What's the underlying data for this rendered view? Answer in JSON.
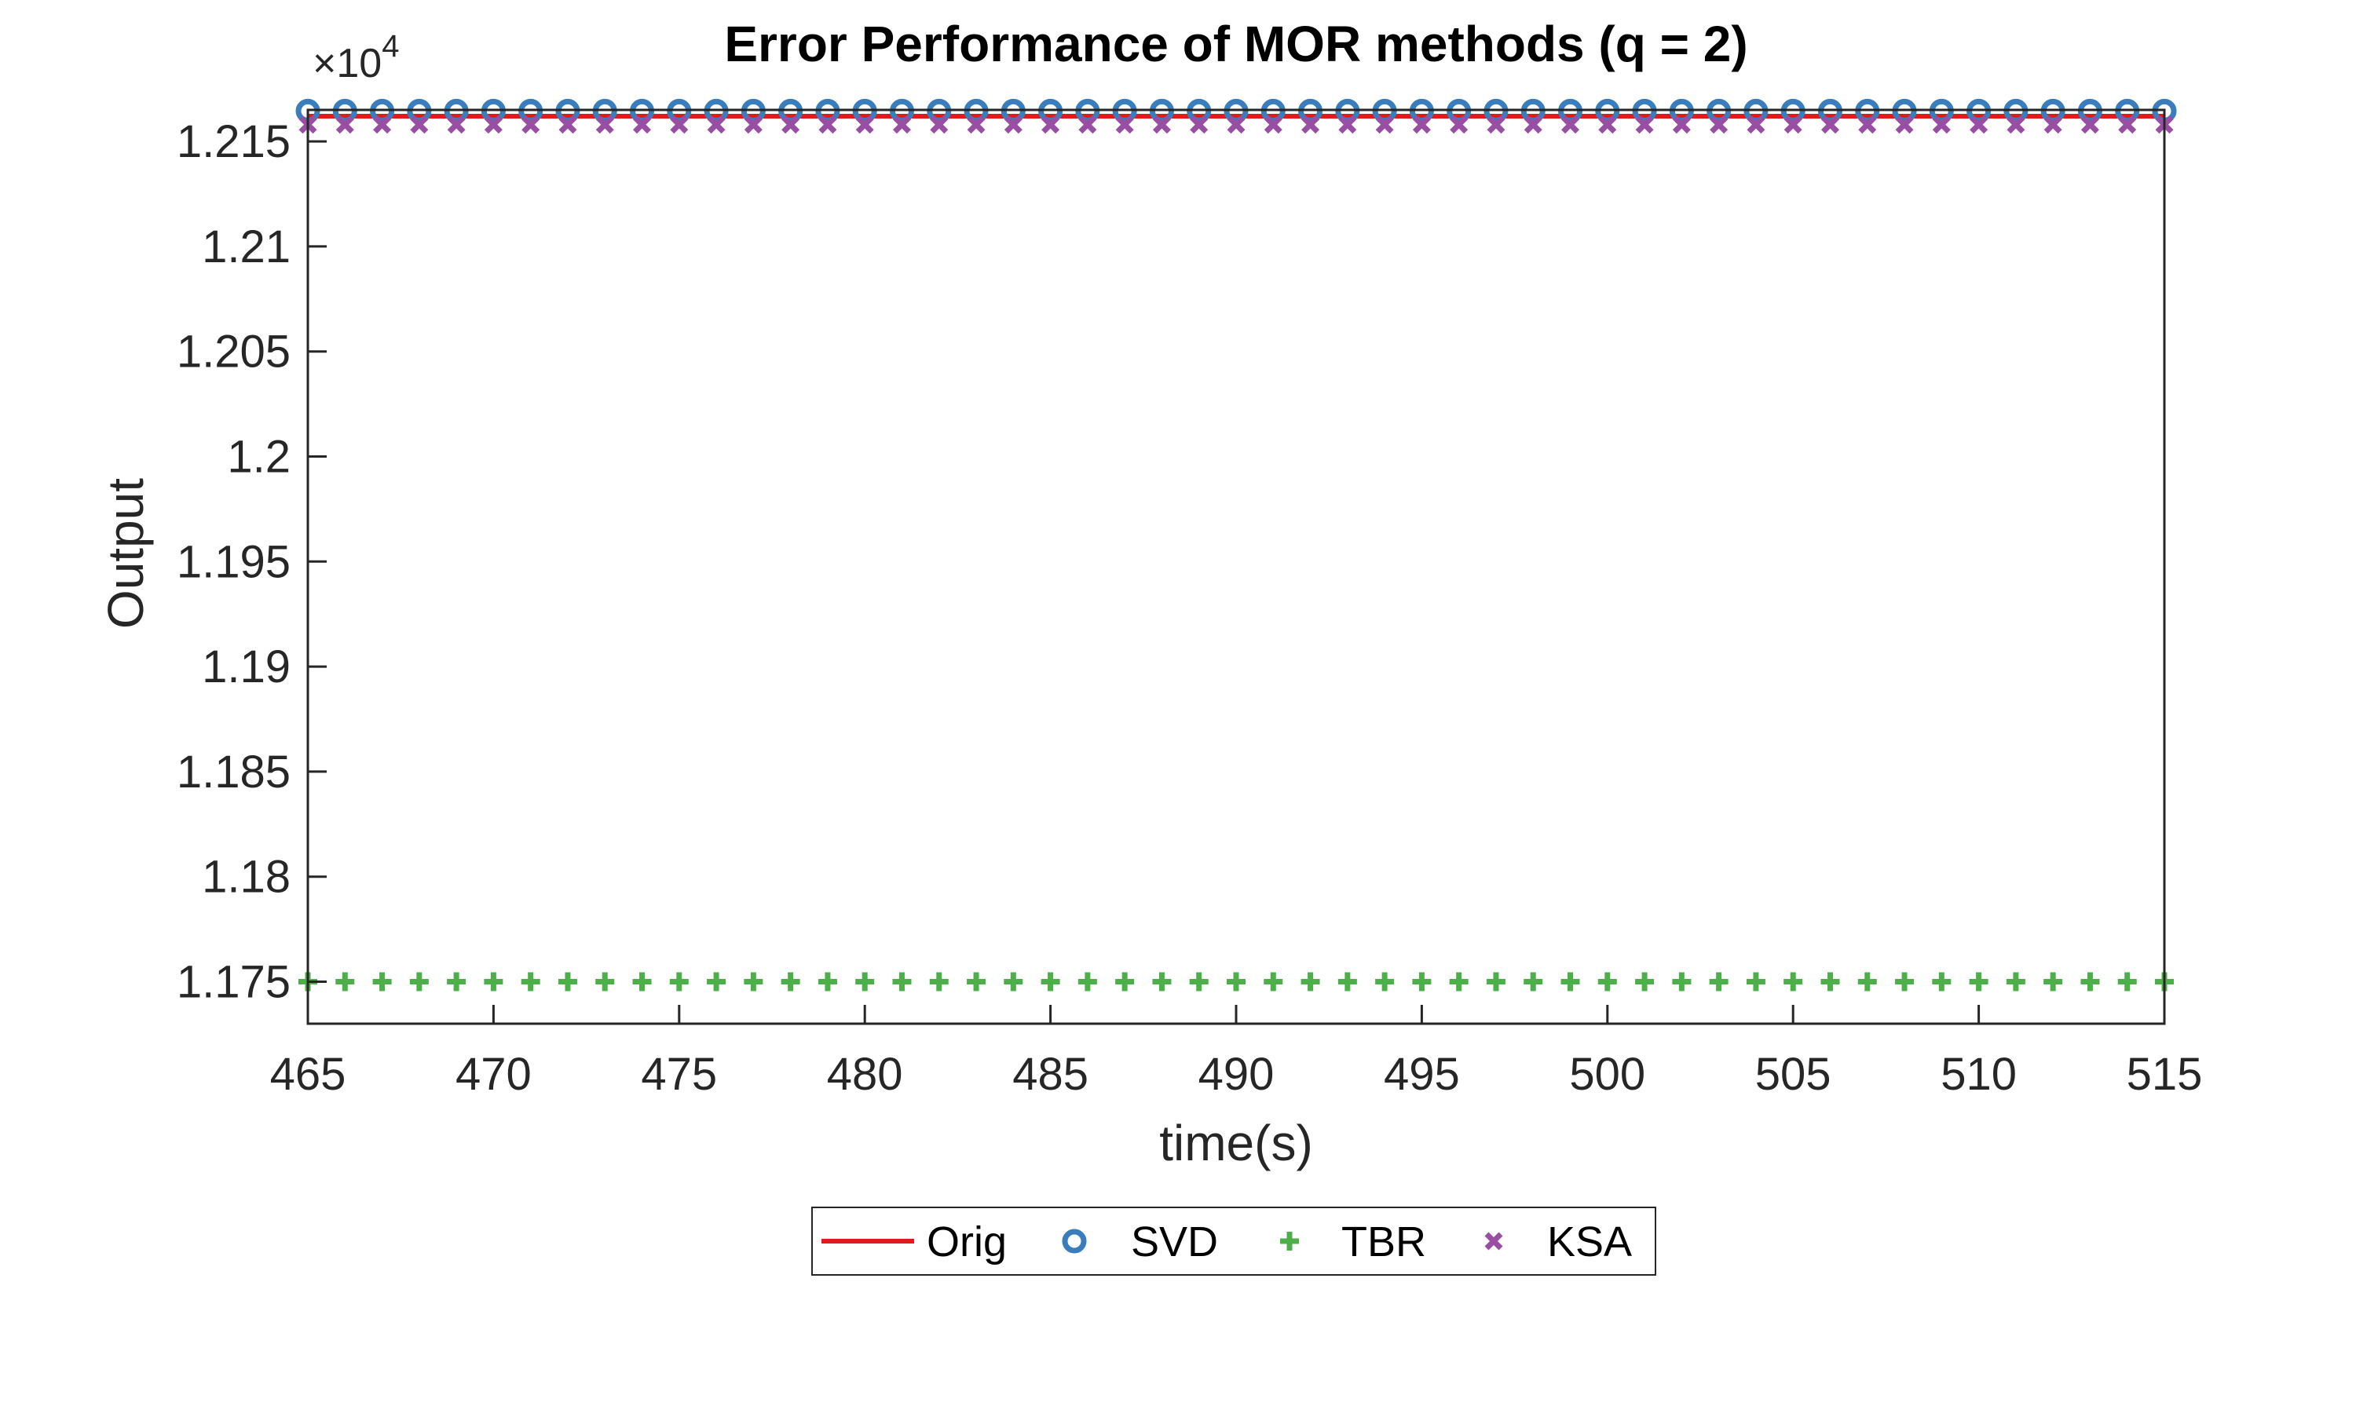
{
  "chart_data": {
    "type": "line",
    "title": "Error Performance of MOR methods (q = 2)",
    "xlabel": "time(s)",
    "ylabel": "Output",
    "exponent_label": {
      "base": "×10",
      "power": "4"
    },
    "xlim": [
      465,
      515
    ],
    "ylim": [
      1.173,
      1.2165
    ],
    "xticks": [
      465,
      470,
      475,
      480,
      485,
      490,
      495,
      500,
      505,
      510,
      515
    ],
    "yticks": [
      1.175,
      1.18,
      1.185,
      1.19,
      1.195,
      1.2,
      1.205,
      1.21,
      1.215
    ],
    "ytick_labels": [
      "1.175",
      "1.18",
      "1.185",
      "1.19",
      "1.195",
      "1.2",
      "1.205",
      "1.21",
      "1.215"
    ],
    "x_start": 465,
    "x_end": 515,
    "x_step": 1,
    "series": [
      {
        "name": "Orig",
        "style": "line",
        "color": "#e3191b",
        "y": 1.2162
      },
      {
        "name": "SVD",
        "style": "circle",
        "color": "#3a7dbd",
        "y": 1.21645
      },
      {
        "name": "TBR",
        "style": "plus",
        "color": "#4daf4a",
        "y": 1.175
      },
      {
        "name": "KSA",
        "style": "x",
        "color": "#984ea3",
        "y": 1.2158
      }
    ],
    "grid": false,
    "legend_position": "bottom-outside"
  }
}
